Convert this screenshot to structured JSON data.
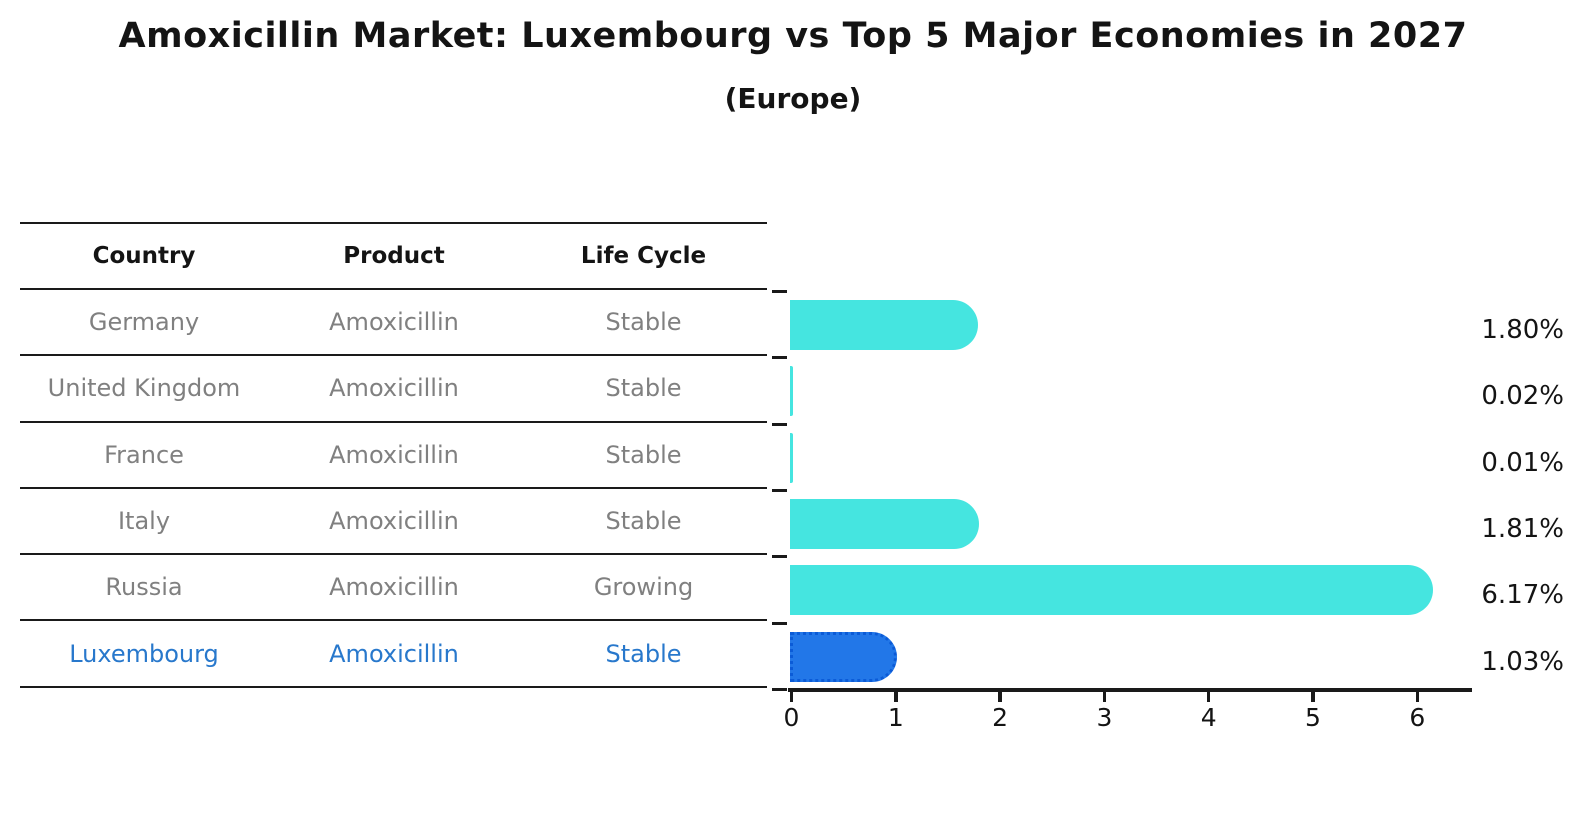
{
  "chart": {
    "title": "Amoxicillin Market: Luxembourg vs Top 5 Major Economies in 2027",
    "subtitle": "(Europe)"
  },
  "table": {
    "columns": [
      "Country",
      "Product",
      "Life Cycle"
    ],
    "rows": [
      {
        "country": "Germany",
        "product": "Amoxicillin",
        "life_cycle": "Stable",
        "highlight": false
      },
      {
        "country": "United Kingdom",
        "product": "Amoxicillin",
        "life_cycle": "Stable",
        "highlight": false
      },
      {
        "country": "France",
        "product": "Amoxicillin",
        "life_cycle": "Stable",
        "highlight": false
      },
      {
        "country": "Italy",
        "product": "Amoxicillin",
        "life_cycle": "Stable",
        "highlight": false
      },
      {
        "country": "Russia",
        "product": "Amoxicillin",
        "life_cycle": "Growing",
        "highlight": false
      },
      {
        "country": "Luxembourg",
        "product": "Amoxicillin",
        "life_cycle": "Stable",
        "highlight": true
      }
    ]
  },
  "chart_data": {
    "type": "bar",
    "orientation": "horizontal",
    "title": "Amoxicillin Market: Luxembourg vs Top 5 Major Economies in 2027",
    "subtitle": "(Europe)",
    "categories": [
      "Germany",
      "United Kingdom",
      "France",
      "Italy",
      "Russia",
      "Luxembourg"
    ],
    "values": [
      1.8,
      0.02,
      0.01,
      1.81,
      6.17,
      1.03
    ],
    "value_labels": [
      "1.80%",
      "0.02%",
      "0.01%",
      "1.81%",
      "6.17%",
      "1.03%"
    ],
    "x_ticks": [
      "0",
      "1",
      "2",
      "3",
      "4",
      "5",
      "6"
    ],
    "xlim": [
      0,
      6.5
    ],
    "grid": false,
    "legend": "none",
    "highlight_index": 5,
    "bar_color": "#45E5E0",
    "highlight_bar_color": "#2277E8",
    "highlight_border_color": "#0B5BD7",
    "highlight_text_color": "#2878CC",
    "row_text_color": "#808080"
  }
}
